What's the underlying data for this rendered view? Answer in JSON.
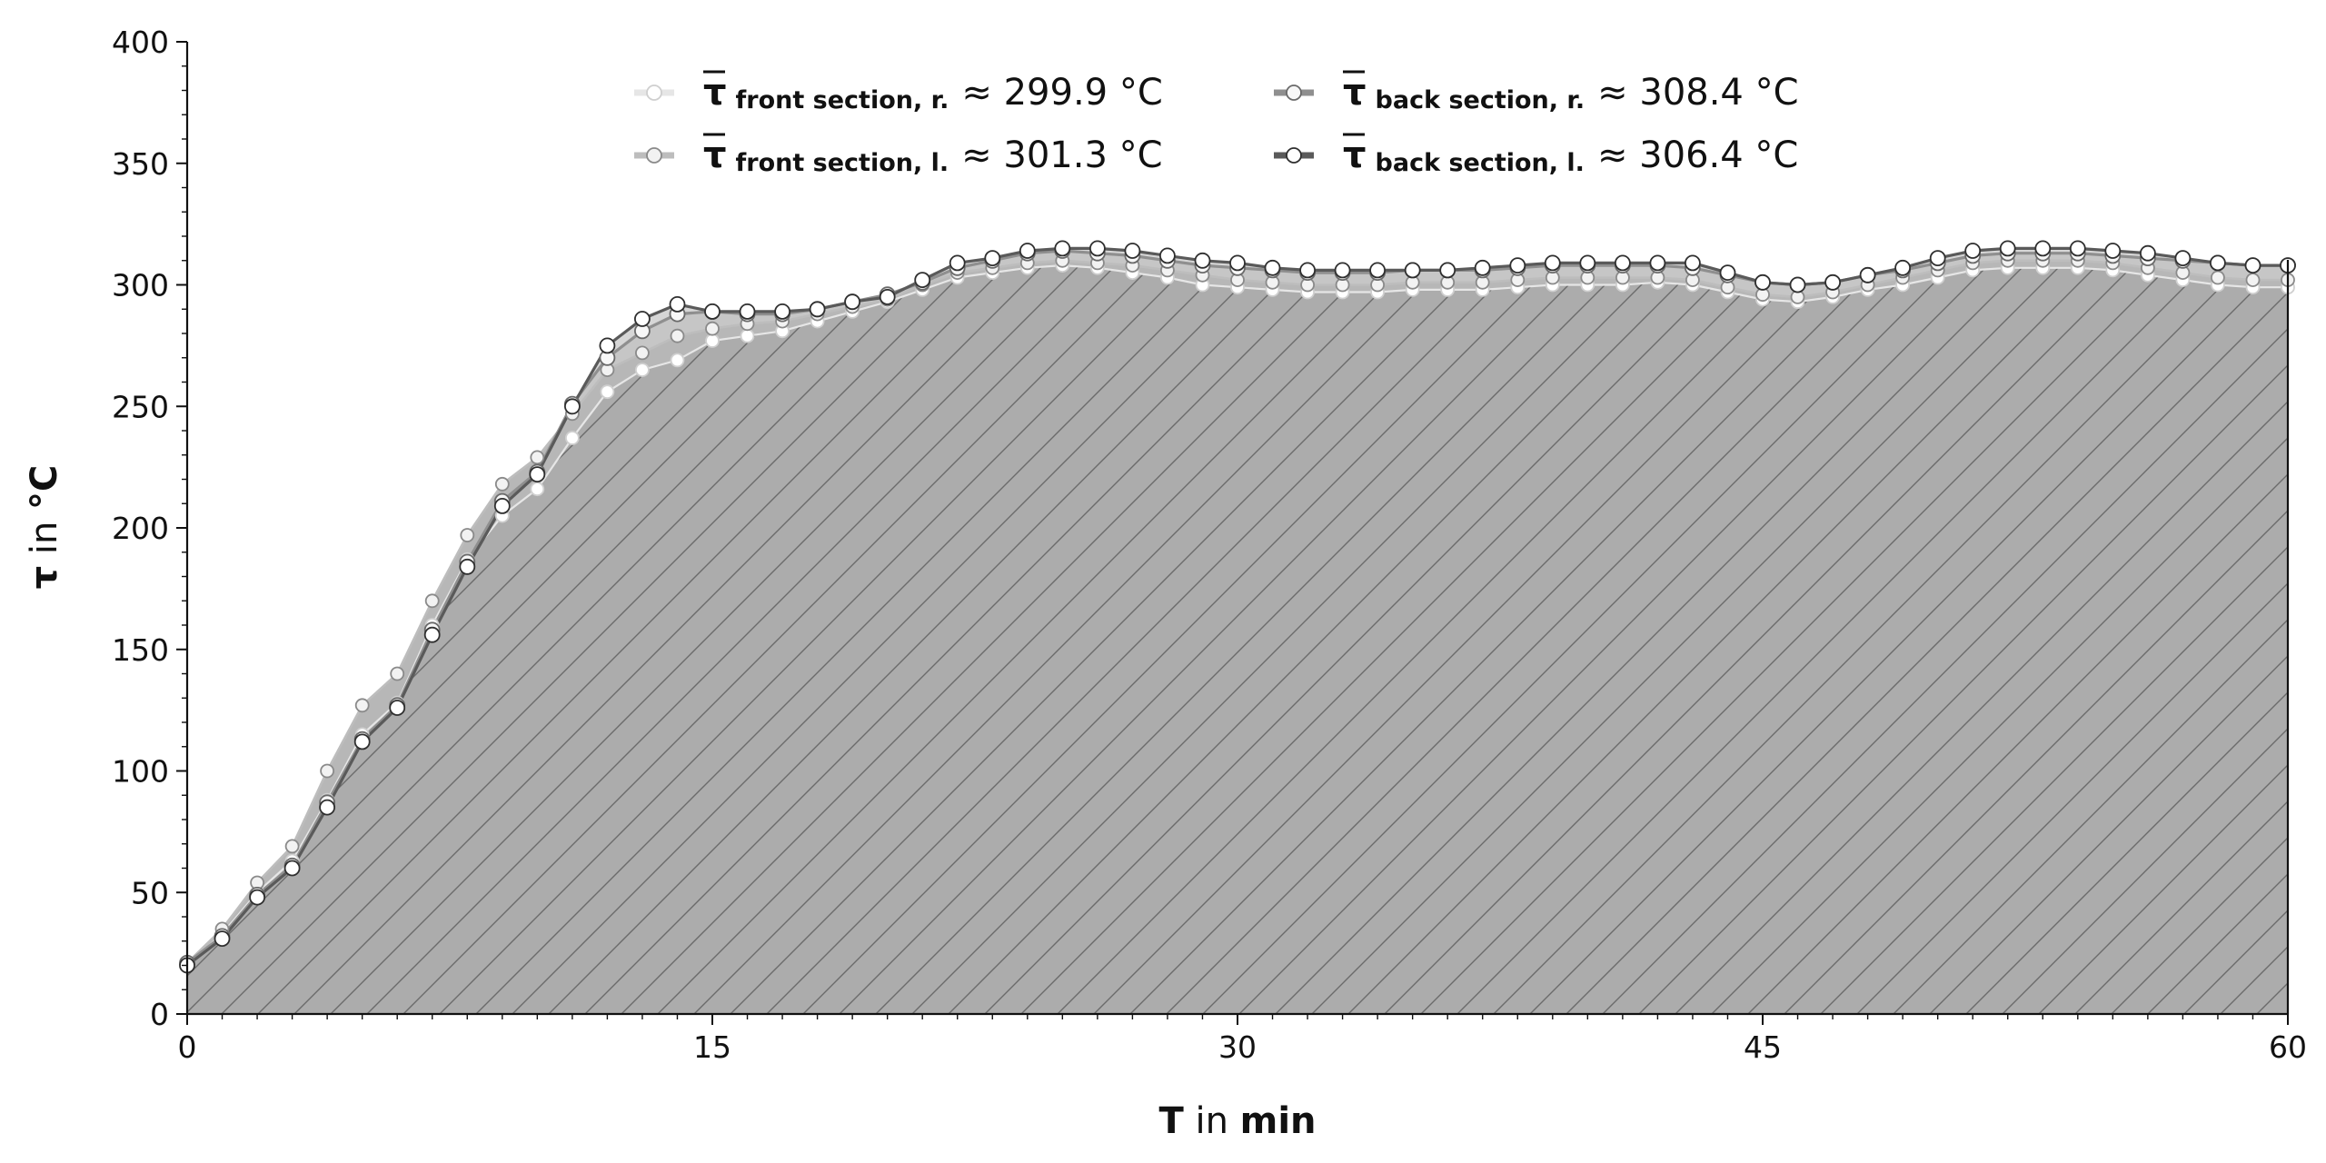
{
  "chart_data": {
    "type": "area",
    "xlabel_bold": "T",
    "xlabel_rest": " in ",
    "xlabel_unit": "min",
    "ylabel_bold": "τ",
    "ylabel_rest": " in ",
    "ylabel_unit": "°C",
    "xlim": [
      0,
      60
    ],
    "ylim": [
      0,
      400
    ],
    "xticks": [
      0,
      15,
      30,
      45,
      60
    ],
    "yticks": [
      0,
      50,
      100,
      150,
      200,
      250,
      300,
      350,
      400
    ],
    "legend_position": "top-center",
    "legend": [
      {
        "symbol": "τ",
        "subscript": "front section, r.",
        "value_text": "≈ 299.9 °C"
      },
      {
        "symbol": "τ",
        "subscript": "front section, l.",
        "value_text": "≈ 301.3 °C"
      },
      {
        "symbol": "τ",
        "subscript": "back section, r.",
        "value_text": "≈ 308.4 °C"
      },
      {
        "symbol": "τ",
        "subscript": "back section, l.",
        "value_text": "≈ 306.4 °C"
      }
    ],
    "x": [
      0,
      1,
      2,
      3,
      4,
      5,
      6,
      7,
      8,
      9,
      10,
      11,
      12,
      13,
      14,
      15,
      16,
      17,
      18,
      19,
      20,
      21,
      22,
      23,
      24,
      25,
      26,
      27,
      28,
      29,
      30,
      31,
      32,
      33,
      34,
      35,
      36,
      37,
      38,
      39,
      40,
      41,
      42,
      43,
      44,
      45,
      46,
      47,
      48,
      49,
      50,
      51,
      52,
      53,
      54,
      55,
      56,
      57,
      58,
      59,
      60
    ],
    "series": [
      {
        "name": "front section, r.",
        "color": "#e6e6e6",
        "marker_fill": "#ffffff",
        "values": [
          20,
          33,
          50,
          63,
          88,
          115,
          128,
          160,
          187,
          205,
          216,
          237,
          256,
          265,
          269,
          277,
          279,
          281,
          285,
          289,
          293,
          298,
          303,
          305,
          307,
          308,
          307,
          305,
          303,
          300,
          299,
          298,
          297,
          297,
          297,
          298,
          298,
          298,
          299,
          300,
          300,
          300,
          301,
          300,
          297,
          294,
          293,
          295,
          298,
          300,
          303,
          306,
          307,
          307,
          307,
          306,
          304,
          302,
          300,
          299,
          299
        ]
      },
      {
        "name": "front section, l.",
        "color": "#bdbdbd",
        "marker_fill": "#f2f2f2",
        "values": [
          21,
          35,
          54,
          69,
          100,
          127,
          140,
          170,
          197,
          218,
          229,
          247,
          265,
          272,
          279,
          282,
          284,
          285,
          288,
          291,
          294,
          300,
          305,
          307,
          309,
          310,
          309,
          308,
          306,
          304,
          302,
          301,
          300,
          300,
          300,
          301,
          301,
          301,
          302,
          303,
          303,
          303,
          303,
          302,
          299,
          296,
          295,
          297,
          300,
          303,
          306,
          309,
          310,
          310,
          310,
          309,
          307,
          305,
          303,
          302,
          302
        ]
      },
      {
        "name": "back section, r.",
        "color": "#8f8f8f",
        "marker_fill": "#f7f7f7",
        "values": [
          21,
          32,
          49,
          61,
          87,
          113,
          127,
          158,
          186,
          211,
          223,
          251,
          270,
          281,
          288,
          289,
          288,
          288,
          290,
          293,
          296,
          301,
          307,
          310,
          313,
          314,
          313,
          312,
          310,
          308,
          307,
          306,
          305,
          305,
          305,
          306,
          306,
          306,
          307,
          308,
          308,
          308,
          308,
          307,
          304,
          301,
          300,
          301,
          304,
          306,
          309,
          312,
          313,
          313,
          313,
          312,
          311,
          310,
          309,
          308,
          308
        ]
      },
      {
        "name": "back section, l.",
        "color": "#5a5a5a",
        "marker_fill": "#ffffff",
        "values": [
          20,
          31,
          48,
          60,
          85,
          112,
          126,
          156,
          184,
          209,
          222,
          250,
          275,
          286,
          292,
          289,
          289,
          289,
          290,
          293,
          295,
          302,
          309,
          311,
          314,
          315,
          315,
          314,
          312,
          310,
          309,
          307,
          306,
          306,
          306,
          306,
          306,
          307,
          308,
          309,
          309,
          309,
          309,
          309,
          305,
          301,
          300,
          301,
          304,
          307,
          311,
          314,
          315,
          315,
          315,
          314,
          313,
          311,
          309,
          308,
          308
        ]
      }
    ]
  }
}
